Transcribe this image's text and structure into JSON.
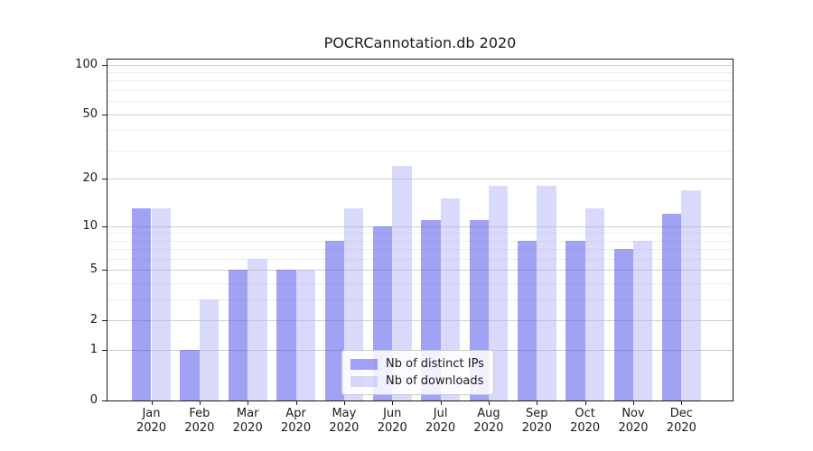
{
  "chart_data": {
    "type": "bar",
    "title": "POCRCannotation.db 2020",
    "categories": [
      "Jan 2020",
      "Feb 2020",
      "Mar 2020",
      "Apr 2020",
      "May 2020",
      "Jun 2020",
      "Jul 2020",
      "Aug 2020",
      "Sep 2020",
      "Oct 2020",
      "Nov 2020",
      "Dec 2020"
    ],
    "series": [
      {
        "name": "Nb of distinct IPs",
        "color": "rgba(85,85,235,0.55)",
        "values": [
          13,
          1,
          5,
          5,
          8,
          10,
          11,
          11,
          8,
          8,
          7,
          12
        ]
      },
      {
        "name": "Nb of downloads",
        "color": "rgba(170,170,245,0.45)",
        "values": [
          13,
          3,
          6,
          5,
          13,
          24,
          15,
          18,
          18,
          13,
          8,
          17
        ]
      }
    ],
    "yscale": "log1p",
    "ylim": [
      0,
      107
    ],
    "yticks": [
      0,
      1,
      2,
      5,
      10,
      20,
      50,
      100
    ],
    "minor_yticks": [
      3,
      4,
      6,
      7,
      8,
      9,
      30,
      40,
      60,
      70,
      80,
      90
    ],
    "grid": true,
    "legend_position": "lower center",
    "grid_colors": {
      "major": "#cfcfcf",
      "minor": "#ededed"
    },
    "axis_color": "#1a1a1a",
    "text_color": "#1a1a1a"
  }
}
